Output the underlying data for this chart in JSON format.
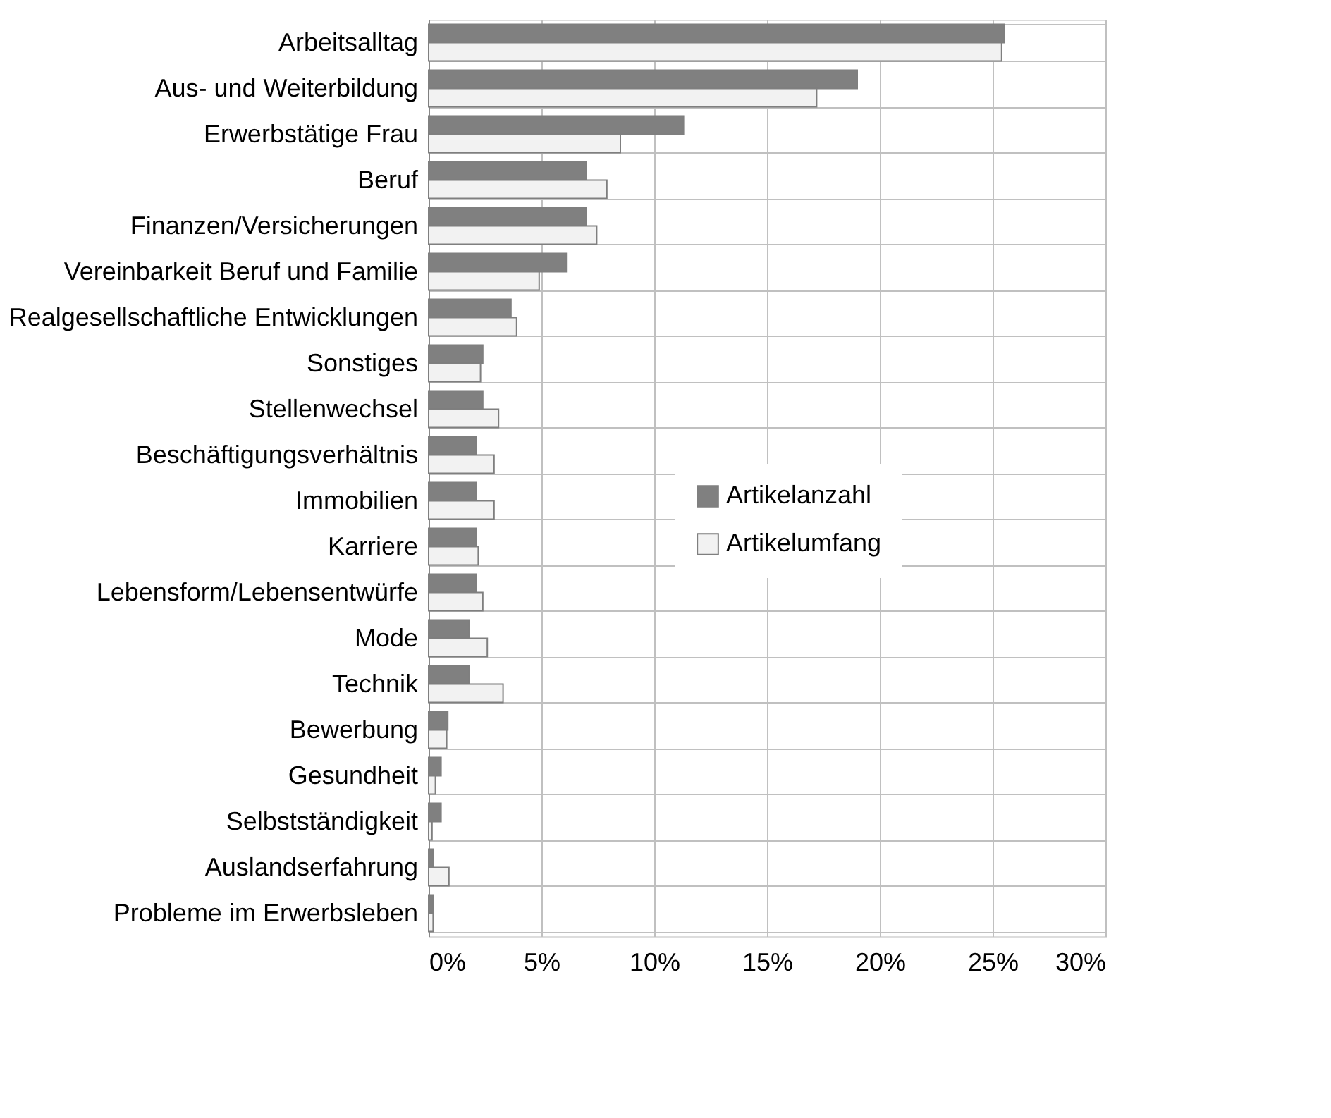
{
  "chart_data": {
    "type": "bar",
    "orientation": "horizontal",
    "categories": [
      "Arbeitsalltag",
      "Aus- und Weiterbildung",
      "Erwerbstätige Frau",
      "Beruf",
      "Finanzen/Versicherungen",
      "Vereinbarkeit Beruf und Familie",
      "Realgesellschaftliche Entwicklungen",
      "Sonstiges",
      "Stellenwechsel",
      "Beschäftigungsverhältnis",
      "Immobilien",
      "Karriere",
      "Lebensform/Lebensentwürfe",
      "Mode",
      "Technik",
      "Bewerbung",
      "Gesundheit",
      "Selbstständigkeit",
      "Auslandserfahrung",
      "Probleme im Erwerbsleben"
    ],
    "series": [
      {
        "name": "Artikelanzahl",
        "color": "#808080",
        "values": [
          25.5,
          19.0,
          11.3,
          7.0,
          7.0,
          6.1,
          3.65,
          2.4,
          2.4,
          2.1,
          2.1,
          2.1,
          2.1,
          1.8,
          1.8,
          0.85,
          0.55,
          0.55,
          0.2,
          0.2
        ]
      },
      {
        "name": "Artikelumfang",
        "color": "#f2f2f2",
        "values": [
          25.4,
          17.2,
          8.5,
          7.9,
          7.45,
          4.9,
          3.9,
          2.3,
          3.1,
          2.9,
          2.9,
          2.2,
          2.4,
          2.6,
          3.3,
          0.8,
          0.3,
          0.15,
          0.9,
          0.2
        ]
      }
    ],
    "xlim": [
      0,
      30
    ],
    "xticks": [
      {
        "value": 0,
        "label": "0%"
      },
      {
        "value": 5,
        "label": "5%"
      },
      {
        "value": 10,
        "label": "10%"
      },
      {
        "value": 15,
        "label": "15%"
      },
      {
        "value": 20,
        "label": "20%"
      },
      {
        "value": 25,
        "label": "25%"
      },
      {
        "value": 30,
        "label": "30%"
      }
    ],
    "grid": true,
    "legend": "right"
  }
}
